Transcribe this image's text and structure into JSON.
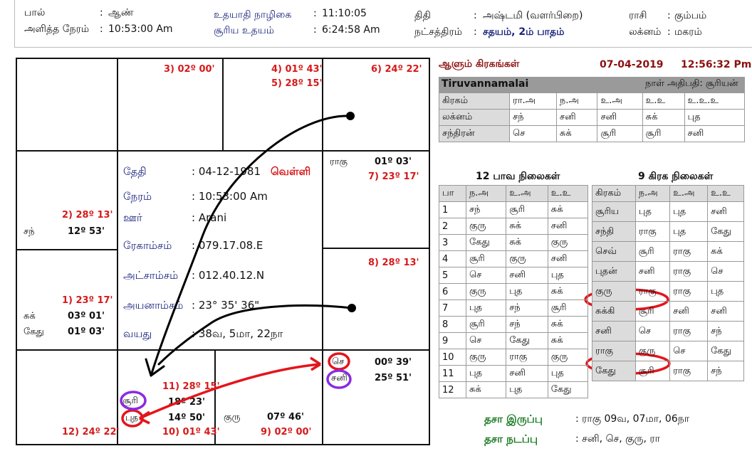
{
  "header": {
    "sex_label": "பால்",
    "sex_value": "ஆண்",
    "given_time_label": "அளித்த நேரம்",
    "given_time_value": "10:53:00 Am",
    "udayadi_label": "உதயாதி நாழிகை",
    "udayadi_value": "11:10:05",
    "sunrise_label": "சூரிய உதயம்",
    "sunrise_value": "6:24:58 Am",
    "tithi_label": "திதி",
    "tithi_value": "அஷ்டமி (வளர்பிறை)",
    "star_label": "நட்சத்திரம்",
    "star_value": "சதயம், 2ம் பாதம்",
    "rasi_label": "ராசி",
    "rasi_value": "கும்பம்",
    "lagna_label": "லக்னம்",
    "lagna_value": "மகரம்"
  },
  "chart": {
    "c1": {
      "deg1": "3) 02º 00'"
    },
    "c2": {
      "deg1": "4) 01º 43'",
      "deg2": "5) 28º 15'"
    },
    "c3": {
      "deg1": "6) 24º 22'"
    },
    "c4": {
      "planet": "ராகு",
      "planet_deg": "01º 03'",
      "deg1": "7) 23º 17'"
    },
    "c5": {
      "deg1": "8) 28º 13'"
    },
    "c6": {
      "p1": "செ",
      "p1_deg": "00º 39'",
      "p2": "சனி",
      "p2_deg": "25º 51'"
    },
    "c7": {
      "planet": "குரு",
      "planet_deg": "07º 46'",
      "deg1": "9) 02º 00'"
    },
    "c8": {
      "deg1": "11) 28º 15'",
      "p1": "சூரி",
      "p1_deg": "18º 23'",
      "p2": "புத",
      "p2_deg": "14º 50'",
      "deg2": "10) 01º 43'"
    },
    "c9": {
      "deg1": "12) 24º 22'"
    },
    "c10": {
      "deg1": "1) 23º 17'",
      "p1": "சுக்",
      "p1_deg": "03º 01'",
      "p2": "கேது",
      "p2_deg": "01º 03'"
    },
    "c11": {
      "deg1": "2) 28º 13'",
      "p1": "சந்",
      "p1_deg": "12º 53'"
    }
  },
  "info": {
    "date_label": "தேதி",
    "date_value": ": 04-12-1981",
    "day_value": "வெள்ளி",
    "time_label": "நேரம்",
    "time_value": ": 10:53:00 Am",
    "place_label": "ஊர்",
    "place_value": ": Arani",
    "long_label": "ரேகாம்சம்",
    "long_value": ": 079.17.08.E",
    "lat_label": "அட்சாம்சம்",
    "lat_value": ": 012.40.12.N",
    "ayan_label": "அயனாம்சம்",
    "ayan_value": ": 23° 35' 36\"",
    "age_label": "வயது",
    "age_value": ": 38வ, 5மா, 22நா"
  },
  "ruling": {
    "title": "ஆளும் கிரகங்கள்",
    "date": "07-04-2019",
    "time": "12:56:32 Pm",
    "place": "Tiruvannamalai",
    "day_lord": "நாள் அதிபதி: சூரியன்",
    "rows": [
      {
        "label": "கிரகம்",
        "cells": [
          "ரா.அ",
          "ந.அ",
          "உ.அ",
          "உ.உ",
          "உ.உ.உ"
        ]
      },
      {
        "label": "லக்னம்",
        "cells": [
          "சந்",
          "சனி",
          "சனி",
          "சுக்",
          "புத"
        ]
      },
      {
        "label": "சந்திரன்",
        "cells": [
          "செ",
          "சுக்",
          "சூரி",
          "சூரி",
          "சனி"
        ]
      }
    ]
  },
  "bhava": {
    "title": "12 பாவ நிலைகள்",
    "headers": [
      "பா",
      "ந.அ",
      "உ.அ",
      "உ.உ"
    ],
    "rows": [
      [
        "1",
        "சந்",
        "சூரி",
        "சுக்"
      ],
      [
        "2",
        "குரு",
        "சுக்",
        "சனி"
      ],
      [
        "3",
        "கேது",
        "சுக்",
        "குரு"
      ],
      [
        "4",
        "சூரி",
        "குரு",
        "சனி"
      ],
      [
        "5",
        "செ",
        "சனி",
        "புத"
      ],
      [
        "6",
        "குரு",
        "புத",
        "சுக்"
      ],
      [
        "7",
        "புத",
        "சந்",
        "சூரி"
      ],
      [
        "8",
        "சூரி",
        "சந்",
        "சுக்"
      ],
      [
        "9",
        "செ",
        "கேது",
        "சுக்"
      ],
      [
        "10",
        "குரு",
        "ராகு",
        "குரு"
      ],
      [
        "11",
        "புத",
        "சனி",
        "புத"
      ],
      [
        "12",
        "சுக்",
        "புத",
        "கேது"
      ]
    ]
  },
  "graha": {
    "title": "9 கிரக நிலைகள்",
    "headers": [
      "கிரகம்",
      "ந.அ",
      "உ.அ",
      "உ.உ"
    ],
    "rows": [
      [
        "சூரிய",
        "புத",
        "புத",
        "சனி"
      ],
      [
        "சந்தி",
        "ராகு",
        "புத",
        "கேது"
      ],
      [
        "செவ்",
        "சூரி",
        "ராகு",
        "சுக்"
      ],
      [
        "புதன்",
        "சனி",
        "ராகு",
        "செ"
      ],
      [
        "குரு",
        "ராகு",
        "ராகு",
        "புத"
      ],
      [
        "சுக்கி",
        "சூரி",
        "சனி",
        "சனி"
      ],
      [
        "சனி",
        "செ",
        "ராகு",
        "சந்"
      ],
      [
        "ராகு",
        "குரு",
        "செ",
        "கேது"
      ],
      [
        "கேது",
        "சூரி",
        "ராகு",
        "சந்"
      ]
    ]
  },
  "dasa": {
    "bal_label": "தசா இருப்பு",
    "bal_value": ": ராகு 09வ, 07மா, 06நா",
    "cur_label": "தசா நடப்பு",
    "cur_value": ": சனி, செ, குரு, ரா"
  },
  "colors": {
    "red": "#d61a1a",
    "maroon": "#8b1010",
    "green": "#1a7a22",
    "blue": "#1a237e",
    "annot_red": "#e5141b",
    "annot_purple": "#8a2be2"
  }
}
